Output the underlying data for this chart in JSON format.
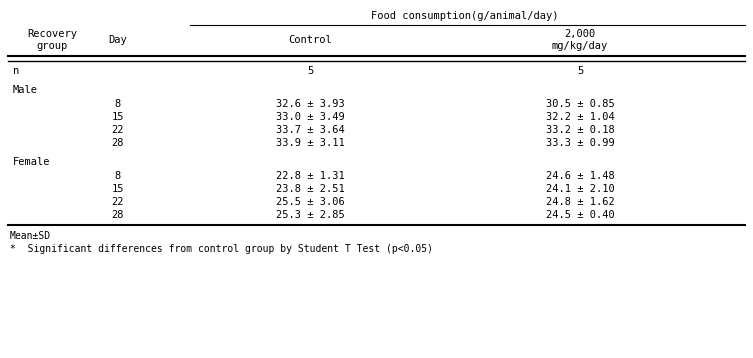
{
  "title": "Food consumption(g/animal/day)",
  "col_header_1": "Recovery\ngroup",
  "col_header_2": "Day",
  "col_header_3": "Control",
  "col_header_4": "2,000\nmg/kg/day",
  "n_label": "n",
  "n_values": [
    "5",
    "5"
  ],
  "male_label": "Male",
  "female_label": "Female",
  "male_days": [
    "8",
    "15",
    "22",
    "28"
  ],
  "male_control": [
    "32.6 ± 3.93",
    "33.0 ± 3.49",
    "33.7 ± 3.64",
    "33.9 ± 3.11"
  ],
  "male_dose": [
    "30.5 ± 0.85",
    "32.2 ± 1.04",
    "33.2 ± 0.18",
    "33.3 ± 0.99"
  ],
  "female_days": [
    "8",
    "15",
    "22",
    "28"
  ],
  "female_control": [
    "22.8 ± 1.31",
    "23.8 ± 2.51",
    "25.5 ± 3.06",
    "25.3 ± 2.85"
  ],
  "female_dose": [
    "24.6 ± 1.48",
    "24.1 ± 2.10",
    "24.8 ± 1.62",
    "24.5 ± 0.40"
  ],
  "footnote1": "Mean±SD",
  "footnote2": "*  Significant differences from control group by Student T Test (p<0.05)",
  "bg_color": "#ffffff",
  "text_color": "#000000",
  "font_size": 7.5,
  "header_font_size": 7.5
}
